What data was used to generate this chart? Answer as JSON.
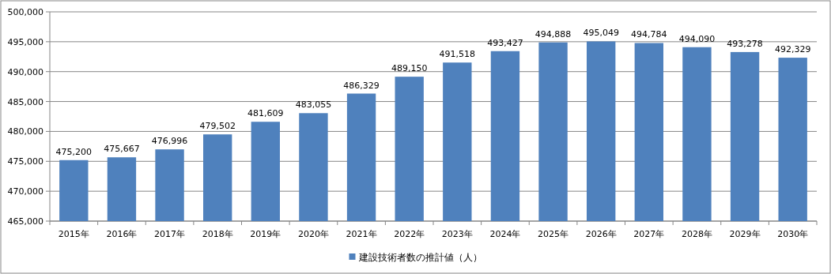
{
  "chart_data": {
    "type": "bar",
    "categories": [
      "2015年",
      "2016年",
      "2017年",
      "2018年",
      "2019年",
      "2020年",
      "2021年",
      "2022年",
      "2023年",
      "2024年",
      "2025年",
      "2026年",
      "2027年",
      "2028年",
      "2029年",
      "2030年"
    ],
    "series": [
      {
        "name": "建設技術者数の推計値（人）",
        "color": "#4f81bd",
        "values": [
          475200,
          475667,
          476996,
          479502,
          481609,
          483055,
          486329,
          489150,
          491518,
          493427,
          494888,
          495049,
          494784,
          494090,
          493278,
          492329
        ],
        "value_labels": [
          "475,200",
          "475,667",
          "476,996",
          "479,502",
          "481,609",
          "483,055",
          "486,329",
          "489,150",
          "491,518",
          "493,427",
          "494,888",
          "495,049",
          "494,784",
          "494,090",
          "493,278",
          "492,329"
        ]
      }
    ],
    "ylim": [
      465000,
      500000
    ],
    "yticks": [
      {
        "value": 465000,
        "label": "465,000"
      },
      {
        "value": 470000,
        "label": "470,000"
      },
      {
        "value": 475000,
        "label": "475,000"
      },
      {
        "value": 480000,
        "label": "480,000"
      },
      {
        "value": 485000,
        "label": "485,000"
      },
      {
        "value": 490000,
        "label": "490,000"
      },
      {
        "value": 495000,
        "label": "495,000"
      },
      {
        "value": 500000,
        "label": "500,000"
      }
    ],
    "grid": "y",
    "legend": "bottom"
  }
}
